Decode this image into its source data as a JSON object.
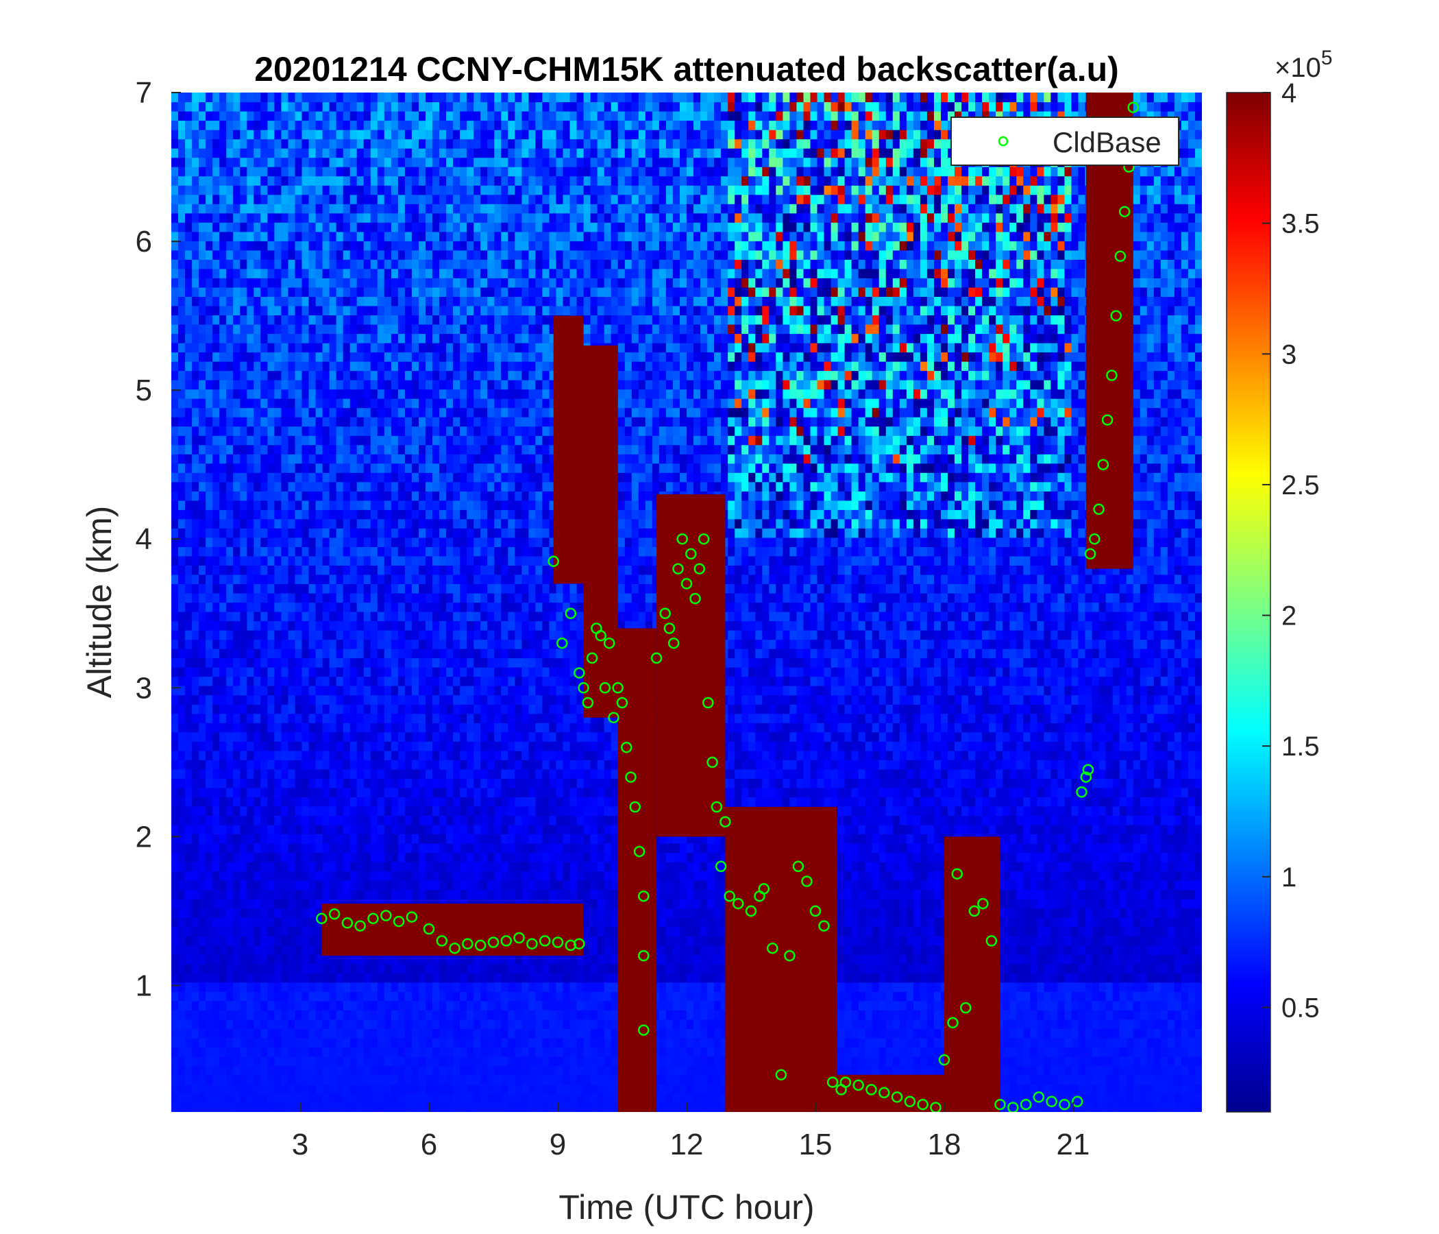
{
  "chart_data": {
    "type": "heatmap",
    "title": "20201214 CCNY-CHM15K attenuated backscatter(a.u)",
    "xlabel": "Time (UTC hour)",
    "ylabel": "Altitude (km)",
    "xlim": [
      0,
      24
    ],
    "ylim": [
      0.15,
      7
    ],
    "xticks": [
      3,
      6,
      9,
      12,
      15,
      18,
      21
    ],
    "xtick_labels": [
      "3",
      "6",
      "9",
      "12",
      "15",
      "18",
      "21"
    ],
    "yticks": [
      1,
      2,
      3,
      4,
      5,
      6,
      7
    ],
    "ytick_labels": [
      "1",
      "2",
      "3",
      "4",
      "5",
      "6",
      "7"
    ],
    "colorbar": {
      "colormap": "jet",
      "clim": [
        10000,
        400000
      ],
      "ticks": [
        50000,
        100000,
        150000,
        200000,
        250000,
        300000,
        350000,
        400000
      ],
      "tick_labels": [
        "0.5",
        "1",
        "1.5",
        "2",
        "2.5",
        "3",
        "3.5",
        "4"
      ],
      "exponent_label": "×10",
      "exponent_power": "5"
    },
    "legend": {
      "position": "top-right",
      "entries": [
        {
          "label": "CldBase",
          "marker": "circle",
          "color": "#00ff00"
        }
      ]
    },
    "background_field": "noisy attenuated backscatter; low values near surface, increasing noise with altitude",
    "saturated_regions": [
      {
        "t_start": 8.9,
        "t_end": 9.6,
        "alt_bottom": 3.7,
        "alt_top": 5.5
      },
      {
        "t_start": 9.6,
        "t_end": 10.4,
        "alt_bottom": 2.8,
        "alt_top": 5.3
      },
      {
        "t_start": 10.4,
        "t_end": 11.3,
        "alt_bottom": 0.15,
        "alt_top": 3.4
      },
      {
        "t_start": 11.3,
        "t_end": 12.9,
        "alt_bottom": 2.0,
        "alt_top": 4.3
      },
      {
        "t_start": 12.9,
        "t_end": 15.5,
        "alt_bottom": 0.15,
        "alt_top": 2.2
      },
      {
        "t_start": 15.5,
        "t_end": 18.0,
        "alt_bottom": 0.15,
        "alt_top": 0.4
      },
      {
        "t_start": 18.0,
        "t_end": 19.3,
        "alt_bottom": 0.15,
        "alt_top": 2.0
      },
      {
        "t_start": 3.5,
        "t_end": 9.6,
        "alt_bottom": 1.2,
        "alt_top": 1.55
      },
      {
        "t_start": 21.3,
        "t_end": 22.4,
        "alt_bottom": 3.8,
        "alt_top": 7.0
      }
    ],
    "series": [
      {
        "name": "CldBase",
        "x": [
          3.5,
          3.8,
          4.1,
          4.4,
          4.7,
          5.0,
          5.3,
          5.6,
          6.0,
          6.3,
          6.6,
          6.9,
          7.2,
          7.5,
          7.8,
          8.1,
          8.4,
          8.7,
          9.0,
          9.3,
          9.5,
          8.9,
          9.1,
          9.3,
          9.5,
          9.6,
          9.7,
          9.8,
          9.9,
          10.0,
          10.1,
          10.2,
          10.3,
          10.4,
          10.5,
          10.6,
          10.7,
          10.8,
          10.9,
          11.0,
          11.0,
          11.0,
          11.3,
          11.5,
          11.6,
          11.7,
          11.8,
          11.9,
          12.0,
          12.1,
          12.2,
          12.3,
          12.4,
          12.5,
          12.6,
          12.7,
          12.8,
          12.9,
          13.0,
          13.2,
          13.5,
          13.7,
          13.8,
          14.0,
          14.2,
          14.4,
          14.6,
          14.8,
          15.0,
          15.2,
          15.4,
          15.6,
          15.7,
          16.0,
          16.3,
          16.6,
          16.9,
          17.2,
          17.5,
          17.8,
          18.0,
          18.2,
          18.3,
          18.5,
          18.7,
          18.9,
          19.1,
          19.3,
          19.6,
          19.9,
          20.2,
          20.5,
          20.8,
          21.1,
          21.2,
          21.3,
          21.35,
          21.4,
          21.5,
          21.6,
          21.7,
          21.8,
          21.9,
          22.0,
          22.1,
          22.2,
          22.3,
          22.4
        ],
        "y": [
          1.45,
          1.48,
          1.42,
          1.4,
          1.45,
          1.47,
          1.43,
          1.46,
          1.38,
          1.3,
          1.25,
          1.28,
          1.27,
          1.29,
          1.3,
          1.32,
          1.28,
          1.3,
          1.29,
          1.27,
          1.28,
          3.85,
          3.3,
          3.5,
          3.1,
          3.0,
          2.9,
          3.2,
          3.4,
          3.35,
          3.0,
          3.3,
          2.8,
          3.0,
          2.9,
          2.6,
          2.4,
          2.2,
          1.9,
          1.6,
          1.2,
          0.7,
          3.2,
          3.5,
          3.4,
          3.3,
          3.8,
          4.0,
          3.7,
          3.9,
          3.6,
          3.8,
          4.0,
          2.9,
          2.5,
          2.2,
          1.8,
          2.1,
          1.6,
          1.55,
          1.5,
          1.6,
          1.65,
          1.25,
          0.4,
          1.2,
          1.8,
          1.7,
          1.5,
          1.4,
          0.35,
          0.3,
          0.35,
          0.33,
          0.3,
          0.28,
          0.25,
          0.22,
          0.2,
          0.18,
          0.5,
          0.75,
          1.75,
          0.85,
          1.5,
          1.55,
          1.3,
          0.2,
          0.18,
          0.2,
          0.25,
          0.22,
          0.2,
          0.22,
          2.3,
          2.4,
          2.45,
          3.9,
          4.0,
          4.2,
          4.5,
          4.8,
          5.1,
          5.5,
          5.9,
          6.2,
          6.5,
          6.9
        ]
      }
    ]
  }
}
